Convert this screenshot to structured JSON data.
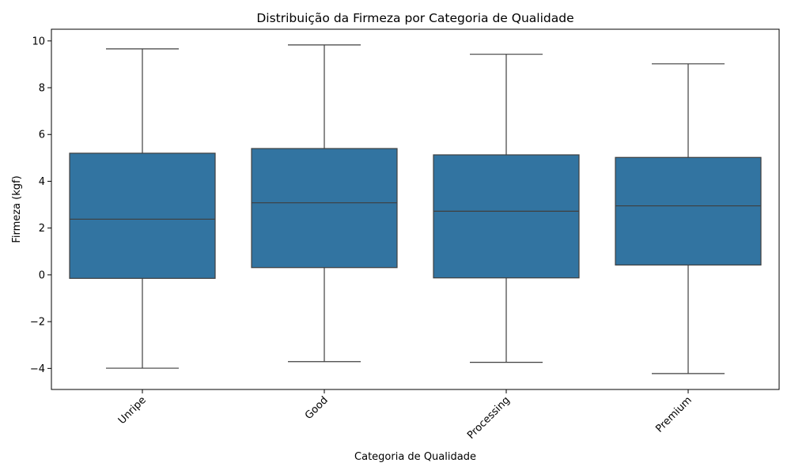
{
  "chart_data": {
    "type": "box",
    "title": "Distribuição da Firmeza por Categoria de Qualidade",
    "xlabel": "Categoria de Qualidade",
    "ylabel": "Firmeza (kgf)",
    "ylim": [
      -4.9,
      10.5
    ],
    "yticks": [
      -4,
      -2,
      0,
      2,
      4,
      6,
      8,
      10
    ],
    "ytick_labels": [
      "−4",
      "−2",
      "0",
      "2",
      "4",
      "6",
      "8",
      "10"
    ],
    "xtick_rotation": 45,
    "grid": false,
    "color": "#3274a1",
    "categories": [
      "Unripe",
      "Good",
      "Processing",
      "Premium"
    ],
    "boxes": [
      {
        "category": "Unripe",
        "min": -3.99,
        "q1": -0.15,
        "median": 2.38,
        "q3": 5.2,
        "max": 9.66
      },
      {
        "category": "Good",
        "min": -3.71,
        "q1": 0.31,
        "median": 3.08,
        "q3": 5.4,
        "max": 9.83
      },
      {
        "category": "Processing",
        "min": -3.74,
        "q1": -0.13,
        "median": 2.72,
        "q3": 5.13,
        "max": 9.43
      },
      {
        "category": "Premium",
        "min": -4.22,
        "q1": 0.42,
        "median": 2.95,
        "q3": 5.02,
        "max": 9.02
      }
    ]
  }
}
